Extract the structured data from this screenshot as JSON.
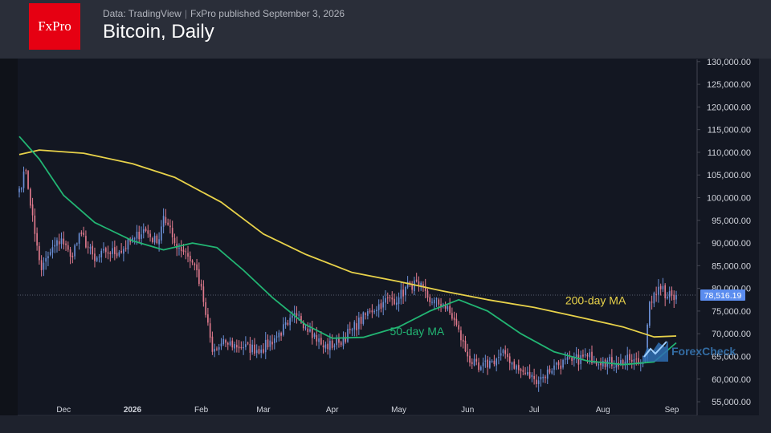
{
  "header": {
    "logo_text": "FxPro",
    "data_source": "Data: TradingView",
    "published": "FxPro published September 3, 2026",
    "title": "Bitcoin, Daily"
  },
  "watermark": "ForexCheck",
  "chart_data": {
    "type": "candlestick",
    "title": "Bitcoin, Daily",
    "ylim": [
      52000,
      130500
    ],
    "y_ticks": [
      "55,000.00",
      "60,000.00",
      "65,000.00",
      "70,000.00",
      "75,000.00",
      "80,000.00",
      "85,000.00",
      "90,000.00",
      "95,000.00",
      "100,000.00",
      "105,000.00",
      "110,000.00",
      "115,000.00",
      "120,000.00",
      "125,000.00",
      "130,000.00"
    ],
    "y_tick_values": [
      55000,
      60000,
      65000,
      70000,
      75000,
      80000,
      85000,
      90000,
      95000,
      100000,
      105000,
      110000,
      115000,
      120000,
      125000,
      130000
    ],
    "x_ticks": [
      "Dec",
      "2026",
      "Feb",
      "Mar",
      "Apr",
      "May",
      "Jun",
      "Jul",
      "Aug",
      "Sep"
    ],
    "x_tick_dates": [
      "2025-12-01",
      "2026-01-01",
      "2026-02-01",
      "2026-03-01",
      "2026-04-01",
      "2026-05-01",
      "2026-06-01",
      "2026-07-01",
      "2026-08-01",
      "2026-09-01"
    ],
    "last_price": 78516.19,
    "last_price_label": "78,516.19",
    "colors": {
      "up": "#6b8fd6",
      "down": "#e07a8d",
      "ma200": "#e8d24a",
      "ma50": "#22b573",
      "last_price": "#5b8def"
    },
    "close_anchors": [
      [
        "2025-11-11",
        102000
      ],
      [
        "2025-11-14",
        106000
      ],
      [
        "2025-11-18",
        92000
      ],
      [
        "2025-11-21",
        84000
      ],
      [
        "2025-11-25",
        88000
      ],
      [
        "2025-11-30",
        91000
      ],
      [
        "2025-12-04",
        87000
      ],
      [
        "2025-12-09",
        92000
      ],
      [
        "2025-12-15",
        86000
      ],
      [
        "2025-12-20",
        88000
      ],
      [
        "2025-12-26",
        88000
      ],
      [
        "2026-01-02",
        91000
      ],
      [
        "2026-01-06",
        93000
      ],
      [
        "2026-01-12",
        90000
      ],
      [
        "2026-01-15",
        96000
      ],
      [
        "2026-01-20",
        90000
      ],
      [
        "2026-01-25",
        88000
      ],
      [
        "2026-01-30",
        84000
      ],
      [
        "2026-02-02",
        77000
      ],
      [
        "2026-02-06",
        66000
      ],
      [
        "2026-02-12",
        68000
      ],
      [
        "2026-02-20",
        67000
      ],
      [
        "2026-02-28",
        66500
      ],
      [
        "2026-03-06",
        69000
      ],
      [
        "2026-03-12",
        72000
      ],
      [
        "2026-03-16",
        74000
      ],
      [
        "2026-03-22",
        71000
      ],
      [
        "2026-03-28",
        67000
      ],
      [
        "2026-04-04",
        68000
      ],
      [
        "2026-04-10",
        71000
      ],
      [
        "2026-04-18",
        75000
      ],
      [
        "2026-04-24",
        77000
      ],
      [
        "2026-05-01",
        78000
      ],
      [
        "2026-05-06",
        81000
      ],
      [
        "2026-05-10",
        80500
      ],
      [
        "2026-05-16",
        77000
      ],
      [
        "2026-05-21",
        76500
      ],
      [
        "2026-05-26",
        73000
      ],
      [
        "2026-06-01",
        65000
      ],
      [
        "2026-06-06",
        62000
      ],
      [
        "2026-06-12",
        64000
      ],
      [
        "2026-06-18",
        65500
      ],
      [
        "2026-06-24",
        62000
      ],
      [
        "2026-07-01",
        60000
      ],
      [
        "2026-07-05",
        60500
      ],
      [
        "2026-07-10",
        63000
      ],
      [
        "2026-07-18",
        64000
      ],
      [
        "2026-07-25",
        65000
      ],
      [
        "2026-08-01",
        64000
      ],
      [
        "2026-08-07",
        63500
      ],
      [
        "2026-08-13",
        64200
      ],
      [
        "2026-08-18",
        63500
      ],
      [
        "2026-08-20",
        64500
      ],
      [
        "2026-08-21",
        72000
      ],
      [
        "2026-08-22",
        77000
      ],
      [
        "2026-08-24",
        79000
      ],
      [
        "2026-08-27",
        79800
      ],
      [
        "2026-08-30",
        78200
      ],
      [
        "2026-09-03",
        78516.19
      ]
    ],
    "series": [
      {
        "name": "200-day MA",
        "type": "line",
        "points": [
          [
            "2025-11-11",
            109500
          ],
          [
            "2025-11-20",
            110500
          ],
          [
            "2025-12-10",
            109800
          ],
          [
            "2026-01-01",
            107500
          ],
          [
            "2026-01-20",
            104500
          ],
          [
            "2026-02-10",
            99000
          ],
          [
            "2026-03-01",
            92000
          ],
          [
            "2026-03-20",
            87500
          ],
          [
            "2026-04-10",
            83500
          ],
          [
            "2026-05-01",
            81500
          ],
          [
            "2026-05-20",
            79500
          ],
          [
            "2026-06-10",
            77500
          ],
          [
            "2026-07-01",
            75800
          ],
          [
            "2026-07-20",
            73800
          ],
          [
            "2026-08-10",
            71500
          ],
          [
            "2026-08-24",
            69300
          ],
          [
            "2026-09-03",
            69500
          ]
        ]
      },
      {
        "name": "50-day MA",
        "type": "line",
        "points": [
          [
            "2025-11-11",
            113500
          ],
          [
            "2025-11-20",
            108500
          ],
          [
            "2025-12-01",
            100500
          ],
          [
            "2025-12-15",
            94500
          ],
          [
            "2026-01-01",
            90500
          ],
          [
            "2026-01-15",
            88500
          ],
          [
            "2026-01-28",
            90000
          ],
          [
            "2026-02-08",
            89000
          ],
          [
            "2026-02-20",
            84000
          ],
          [
            "2026-03-05",
            78000
          ],
          [
            "2026-03-20",
            72000
          ],
          [
            "2026-04-01",
            69000
          ],
          [
            "2026-04-15",
            69200
          ],
          [
            "2026-05-01",
            71500
          ],
          [
            "2026-05-15",
            75000
          ],
          [
            "2026-05-28",
            77500
          ],
          [
            "2026-06-10",
            75000
          ],
          [
            "2026-06-25",
            70000
          ],
          [
            "2026-07-10",
            66000
          ],
          [
            "2026-07-25",
            64000
          ],
          [
            "2026-08-10",
            63200
          ],
          [
            "2026-08-24",
            63800
          ],
          [
            "2026-09-03",
            68000
          ]
        ]
      }
    ],
    "annotations": [
      {
        "text": "200-day MA",
        "date": "2026-07-15",
        "y": 76500
      },
      {
        "text": "50-day MA",
        "date": "2026-04-27",
        "y": 69700
      }
    ]
  }
}
